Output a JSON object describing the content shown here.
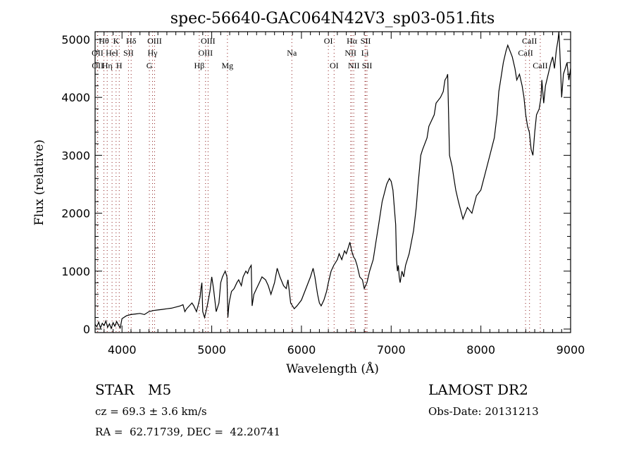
{
  "chart_data": {
    "type": "line",
    "title": "spec-56640-GAC064N42V3_sp03-051.fits",
    "xlabel": "Wavelength (Å)",
    "ylabel": "Flux (relative)",
    "xlim": [
      3700,
      9000
    ],
    "ylim": [
      0,
      5100
    ],
    "xticks": [
      4000,
      5000,
      6000,
      7000,
      8000,
      9000
    ],
    "xtick_labels": [
      "4000",
      "5000",
      "6000",
      "7000",
      "8000",
      "9000"
    ],
    "yticks": [
      0,
      1000,
      2000,
      3000,
      4000,
      5000
    ],
    "ytick_labels": [
      "0",
      "1000",
      "2000",
      "3000",
      "4000",
      "5000"
    ],
    "grid": false,
    "line_color": "#000000",
    "marker_color": "#8b1a1a",
    "series": [
      {
        "name": "flux",
        "x": [
          3700,
          3720,
          3740,
          3760,
          3780,
          3800,
          3820,
          3840,
          3860,
          3880,
          3900,
          3920,
          3940,
          3960,
          3980,
          4000,
          4050,
          4100,
          4150,
          4200,
          4250,
          4300,
          4350,
          4400,
          4450,
          4500,
          4550,
          4600,
          4650,
          4680,
          4700,
          4720,
          4750,
          4780,
          4800,
          4830,
          4850,
          4870,
          4880,
          4890,
          4900,
          4920,
          4950,
          4980,
          5000,
          5020,
          5050,
          5080,
          5100,
          5120,
          5150,
          5170,
          5180,
          5190,
          5200,
          5220,
          5250,
          5280,
          5300,
          5330,
          5350,
          5380,
          5400,
          5420,
          5440,
          5450,
          5470,
          5500,
          5530,
          5560,
          5600,
          5630,
          5660,
          5700,
          5730,
          5760,
          5800,
          5830,
          5850,
          5880,
          5900,
          5920,
          5950,
          6000,
          6050,
          6100,
          6130,
          6150,
          6180,
          6200,
          6220,
          6250,
          6280,
          6300,
          6330,
          6360,
          6400,
          6420,
          6450,
          6480,
          6500,
          6520,
          6540,
          6560,
          6580,
          6600,
          6620,
          6650,
          6680,
          6700,
          6730,
          6760,
          6800,
          6830,
          6860,
          6900,
          6950,
          6980,
          7000,
          7020,
          7050,
          7060,
          7070,
          7080,
          7090,
          7100,
          7120,
          7140,
          7160,
          7200,
          7250,
          7280,
          7300,
          7330,
          7350,
          7400,
          7420,
          7450,
          7480,
          7500,
          7550,
          7580,
          7590,
          7600,
          7620,
          7630,
          7650,
          7680,
          7700,
          7720,
          7750,
          7800,
          7850,
          7900,
          7950,
          8000,
          8050,
          8100,
          8150,
          8180,
          8200,
          8220,
          8250,
          8280,
          8300,
          8350,
          8380,
          8400,
          8430,
          8460,
          8480,
          8500,
          8520,
          8540,
          8560,
          8580,
          8600,
          8620,
          8650,
          8670,
          8680,
          8700,
          8720,
          8750,
          8780,
          8800,
          8820,
          8840,
          8850,
          8860,
          8870,
          8880,
          8900,
          8920,
          8940,
          8960,
          8980,
          9000
        ],
        "y": [
          80,
          40,
          120,
          20,
          100,
          60,
          140,
          30,
          90,
          10,
          110,
          50,
          130,
          70,
          20,
          180,
          230,
          250,
          260,
          270,
          250,
          300,
          320,
          330,
          340,
          350,
          360,
          380,
          400,
          420,
          300,
          350,
          400,
          450,
          400,
          300,
          420,
          550,
          700,
          800,
          300,
          200,
          400,
          650,
          900,
          700,
          300,
          450,
          800,
          900,
          1000,
          900,
          200,
          400,
          500,
          650,
          700,
          800,
          850,
          750,
          900,
          1000,
          960,
          1050,
          1100,
          400,
          600,
          700,
          800,
          900,
          850,
          750,
          600,
          800,
          1050,
          900,
          750,
          700,
          850,
          450,
          400,
          350,
          400,
          500,
          700,
          900,
          1050,
          900,
          600,
          450,
          400,
          500,
          650,
          800,
          1000,
          1100,
          1200,
          1300,
          1200,
          1350,
          1300,
          1400,
          1500,
          1350,
          1250,
          1200,
          1100,
          900,
          850,
          700,
          800,
          1000,
          1200,
          1500,
          1800,
          2200,
          2500,
          2600,
          2550,
          2400,
          1800,
          1200,
          1000,
          1100,
          900,
          800,
          1000,
          900,
          1100,
          1300,
          1700,
          2100,
          2500,
          3000,
          3100,
          3300,
          3500,
          3600,
          3700,
          3900,
          4000,
          4100,
          4200,
          4300,
          4350,
          4400,
          3000,
          2800,
          2600,
          2400,
          2200,
          1900,
          2100,
          2000,
          2300,
          2400,
          2700,
          3000,
          3300,
          3700,
          4100,
          4300,
          4600,
          4800,
          4900,
          4700,
          4500,
          4300,
          4400,
          4200,
          4000,
          3700,
          3500,
          3400,
          3100,
          3000,
          3400,
          3700,
          3800,
          4000,
          4300,
          3900,
          4200,
          4400,
          4600,
          4700,
          4500,
          4800,
          4900,
          5000,
          5150,
          4800,
          4000,
          4400,
          4500,
          4600,
          4300,
          4500
        ],
        "line_labels": [
          {
            "name": "Hθ",
            "wavelength": 3798,
            "row": 1
          },
          {
            "name": "K",
            "wavelength": 3934,
            "row": 1
          },
          {
            "name": "Hδ",
            "wavelength": 4102,
            "row": 1
          },
          {
            "name": "OIII",
            "wavelength": 4363,
            "row": 1
          },
          {
            "name": "OIII",
            "wavelength": 4959,
            "row": 1
          },
          {
            "name": "OI",
            "wavelength": 6300,
            "row": 1
          },
          {
            "name": "Hα",
            "wavelength": 6563,
            "row": 1
          },
          {
            "name": "SII",
            "wavelength": 6716,
            "row": 1
          },
          {
            "name": "CaII",
            "wavelength": 8542,
            "row": 1
          },
          {
            "name": "OII",
            "wavelength": 3727,
            "row": 2
          },
          {
            "name": "HeI",
            "wavelength": 3889,
            "row": 2
          },
          {
            "name": "SII",
            "wavelength": 4072,
            "row": 2
          },
          {
            "name": "Hγ",
            "wavelength": 4340,
            "row": 2
          },
          {
            "name": "OIII",
            "wavelength": 4931,
            "row": 2
          },
          {
            "name": "Na",
            "wavelength": 5893,
            "row": 2
          },
          {
            "name": "NII",
            "wavelength": 6548,
            "row": 2
          },
          {
            "name": "Li",
            "wavelength": 6708,
            "row": 2
          },
          {
            "name": "CaII",
            "wavelength": 8498,
            "row": 2
          },
          {
            "name": "OII",
            "wavelength": 3729,
            "row": 3
          },
          {
            "name": "Hη",
            "wavelength": 3835,
            "row": 3
          },
          {
            "name": "H",
            "wavelength": 3969,
            "row": 3
          },
          {
            "name": "G",
            "wavelength": 4305,
            "row": 3
          },
          {
            "name": "Hβ",
            "wavelength": 4861,
            "row": 3
          },
          {
            "name": "Mg",
            "wavelength": 5175,
            "row": 3
          },
          {
            "name": "OI",
            "wavelength": 6364,
            "row": 3
          },
          {
            "name": "NII",
            "wavelength": 6583,
            "row": 3
          },
          {
            "name": "SII",
            "wavelength": 6731,
            "row": 3
          },
          {
            "name": "CaII",
            "wavelength": 8662,
            "row": 3
          }
        ]
      }
    ]
  },
  "info": {
    "object_class": "STAR",
    "subclass": "M5",
    "redshift_line": "cz = 69.3 ± 3.6 km/s",
    "coords_line": "RA =  62.71739, DEC =  42.20741",
    "survey": "LAMOST DR2",
    "obs_date": "Obs-Date: 20131213"
  }
}
